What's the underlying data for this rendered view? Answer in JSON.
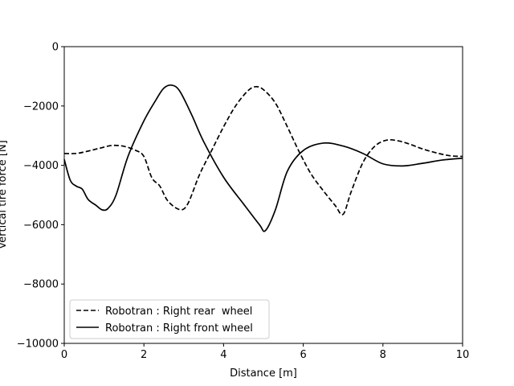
{
  "chart_data": {
    "type": "line",
    "title": "",
    "xlabel": "Distance [m]",
    "ylabel": "Vertical tire force [N]",
    "xlim": [
      0,
      10
    ],
    "ylim": [
      -10000,
      0
    ],
    "xticks": [
      0,
      2,
      4,
      6,
      8,
      10
    ],
    "yticks": [
      0,
      -2000,
      -4000,
      -6000,
      -8000,
      -10000
    ],
    "xtick_labels": [
      "0",
      "2",
      "4",
      "6",
      "8",
      "10"
    ],
    "ytick_labels": [
      "0",
      "−2000",
      "−4000",
      "−6000",
      "−8000",
      "−10000"
    ],
    "grid": false,
    "legend_position": "lower-left",
    "series": [
      {
        "name": "Robotran : Right rear  wheel",
        "style": "dashed",
        "color": "#000000",
        "x": [
          0,
          0.3,
          0.6,
          0.9,
          1.2,
          1.5,
          1.8,
          2.0,
          2.2,
          2.4,
          2.6,
          2.9,
          3.1,
          3.4,
          3.7,
          4.0,
          4.3,
          4.6,
          4.8,
          5.0,
          5.3,
          5.6,
          5.9,
          6.2,
          6.5,
          6.8,
          7.0,
          7.2,
          7.5,
          7.8,
          8.1,
          8.4,
          8.7,
          9.0,
          9.4,
          9.7,
          10.0
        ],
        "y": [
          -3600,
          -3600,
          -3520,
          -3420,
          -3330,
          -3360,
          -3500,
          -3700,
          -4420,
          -4700,
          -5200,
          -5490,
          -5300,
          -4300,
          -3500,
          -2700,
          -2000,
          -1500,
          -1350,
          -1450,
          -1900,
          -2700,
          -3550,
          -4300,
          -4850,
          -5350,
          -5650,
          -4900,
          -3900,
          -3350,
          -3150,
          -3180,
          -3300,
          -3450,
          -3600,
          -3680,
          -3700
        ]
      },
      {
        "name": "Robotran : Right front wheel",
        "style": "solid",
        "color": "#000000",
        "x": [
          0,
          0.15,
          0.3,
          0.45,
          0.6,
          0.8,
          0.95,
          1.1,
          1.3,
          1.6,
          2.0,
          2.3,
          2.5,
          2.7,
          2.9,
          3.2,
          3.5,
          4.0,
          4.5,
          4.9,
          5.05,
          5.3,
          5.6,
          6.0,
          6.5,
          7.0,
          7.5,
          8.0,
          8.5,
          9.0,
          9.5,
          10.0
        ],
        "y": [
          -3800,
          -4500,
          -4700,
          -4800,
          -5150,
          -5350,
          -5500,
          -5450,
          -5000,
          -3700,
          -2500,
          -1800,
          -1400,
          -1300,
          -1500,
          -2300,
          -3200,
          -4400,
          -5300,
          -6000,
          -6200,
          -5500,
          -4200,
          -3500,
          -3250,
          -3350,
          -3600,
          -3950,
          -4020,
          -3930,
          -3820,
          -3760
        ]
      }
    ]
  }
}
